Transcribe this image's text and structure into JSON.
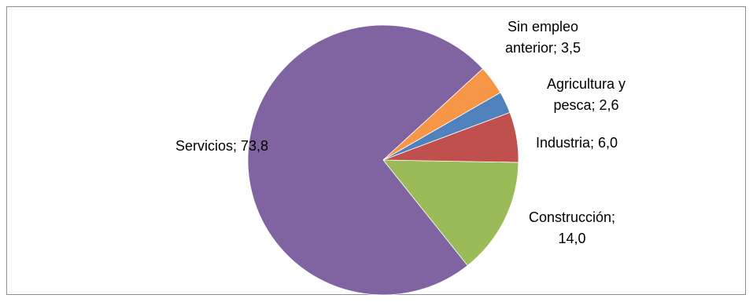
{
  "chart_data": {
    "type": "pie",
    "title": "",
    "slices": [
      {
        "label": "Servicios",
        "value": 73.8,
        "value_text": "73,8",
        "color": "#8064a2"
      },
      {
        "label": "Sin empleo anterior",
        "value": 3.5,
        "value_text": "3,5",
        "color": "#f79646"
      },
      {
        "label": "Agricultura y pesca",
        "value": 2.6,
        "value_text": "2,6",
        "color": "#4f81bd"
      },
      {
        "label": "Industria",
        "value": 6.0,
        "value_text": "6,0",
        "color": "#c0504d"
      },
      {
        "label": "Construcción",
        "value": 14.0,
        "value_text": "14,0",
        "color": "#9bbb59"
      }
    ],
    "label_lines": [
      [
        "Servicios; 73,8"
      ],
      [
        "Sin empleo",
        "anterior; 3,5"
      ],
      [
        "Agricultura y",
        "pesca; 2,6"
      ],
      [
        "Industria; 6,0"
      ],
      [
        "Construcción;",
        "14,0"
      ]
    ],
    "legend": "none",
    "data_labels": "outside"
  }
}
